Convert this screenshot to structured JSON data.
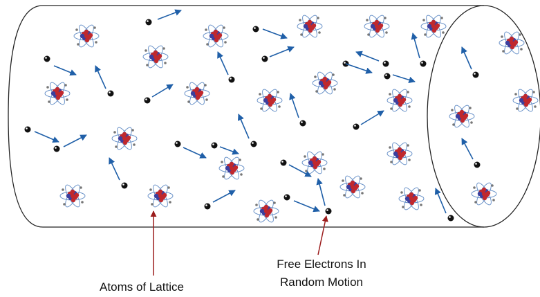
{
  "annotations": {
    "atoms_of_lattice": "Atoms of Lattice",
    "free_electrons": [
      "Free Electrons In",
      "Random Motion"
    ]
  }
}
